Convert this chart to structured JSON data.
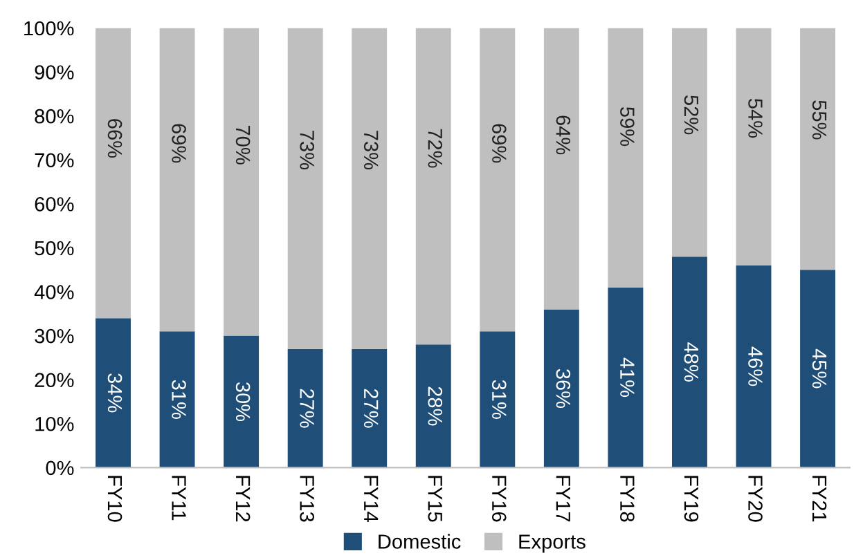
{
  "chart_data": {
    "type": "bar",
    "stacked": true,
    "categories": [
      "FY10",
      "FY11",
      "FY12",
      "FY13",
      "FY14",
      "FY15",
      "FY16",
      "FY17",
      "FY18",
      "FY19",
      "FY20",
      "FY21"
    ],
    "series": [
      {
        "name": "Domestic",
        "color": "#1f4e79",
        "values": [
          34,
          31,
          30,
          27,
          27,
          28,
          31,
          36,
          41,
          48,
          46,
          45
        ],
        "value_labels": [
          "34%",
          "31%",
          "30%",
          "27%",
          "27%",
          "28%",
          "31%",
          "36%",
          "41%",
          "48%",
          "46%",
          "45%"
        ]
      },
      {
        "name": "Exports",
        "color": "#bfbfbf",
        "values": [
          66,
          69,
          70,
          73,
          73,
          72,
          69,
          64,
          59,
          52,
          54,
          55
        ],
        "value_labels": [
          "66%",
          "69%",
          "70%",
          "73%",
          "73%",
          "72%",
          "69%",
          "64%",
          "59%",
          "52%",
          "54%",
          "55%"
        ]
      }
    ],
    "ylim": [
      0,
      100
    ],
    "yticks": [
      {
        "value": 0,
        "label": "0%"
      },
      {
        "value": 10,
        "label": "10%"
      },
      {
        "value": 20,
        "label": "20%"
      },
      {
        "value": 30,
        "label": "30%"
      },
      {
        "value": 40,
        "label": "40%"
      },
      {
        "value": 50,
        "label": "50%"
      },
      {
        "value": 60,
        "label": "60%"
      },
      {
        "value": 70,
        "label": "70%"
      },
      {
        "value": 80,
        "label": "80%"
      },
      {
        "value": 90,
        "label": "90%"
      },
      {
        "value": 100,
        "label": "100%"
      }
    ],
    "legend": "bottom"
  }
}
